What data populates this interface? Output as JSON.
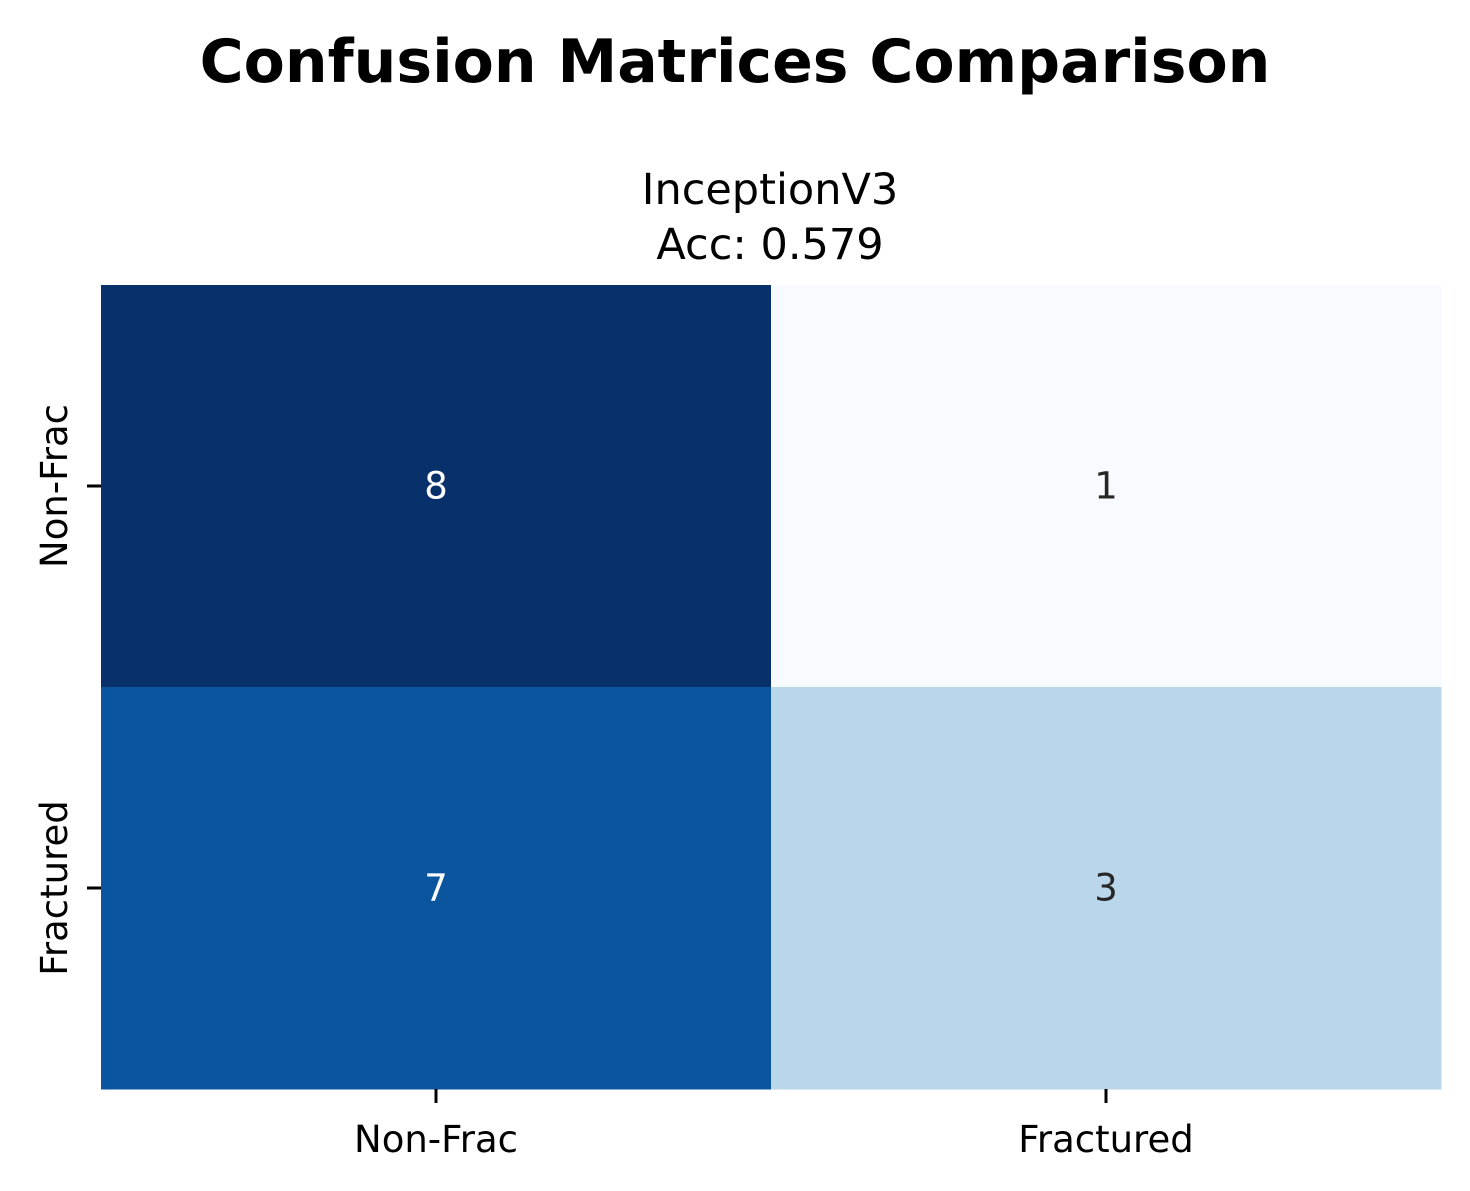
{
  "figure": {
    "title": "Confusion Matrices Comparison"
  },
  "chart_data": {
    "type": "heatmap",
    "title_lines": [
      "InceptionV3",
      "Acc: 0.579"
    ],
    "xlabel": "",
    "ylabel": "",
    "x_categories": [
      "Non-Frac",
      "Fractured"
    ],
    "y_categories": [
      "Non-Frac",
      "Fractured"
    ],
    "values": [
      [
        8,
        1
      ],
      [
        7,
        3
      ]
    ],
    "colormap": "Blues",
    "vmin": 1,
    "vmax": 8,
    "colorbar": false,
    "grid": false,
    "cell_colors": [
      [
        "#08306b",
        "#f7fbff"
      ],
      [
        "#0b559f",
        "#bad6eb"
      ]
    ],
    "text_colors": [
      [
        "#ffffff",
        "#262626"
      ],
      [
        "#ffffff",
        "#262626"
      ]
    ]
  }
}
